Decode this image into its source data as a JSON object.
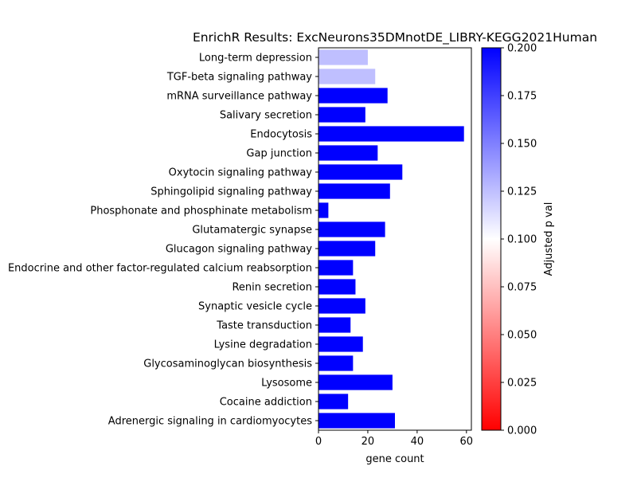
{
  "chart_data": {
    "type": "bar",
    "orientation": "horizontal",
    "title": "EnrichR Results: ExcNeurons35DMnotDE_LIBRY-KEGG2021Human",
    "xlabel": "gene count",
    "ylabel": "",
    "xlim": [
      0,
      62
    ],
    "x_ticks": [
      0,
      20,
      40,
      60
    ],
    "categories": [
      "Long-term depression",
      "TGF-beta signaling pathway",
      "mRNA surveillance pathway",
      "Salivary secretion",
      "Endocytosis",
      "Gap junction",
      "Oxytocin signaling pathway",
      "Sphingolipid signaling pathway",
      "Phosphonate and phosphinate metabolism",
      "Glutamatergic synapse",
      "Glucagon signaling pathway",
      "Endocrine and other factor-regulated calcium reabsorption",
      "Renin secretion",
      "Synaptic vesicle cycle",
      "Taste transduction",
      "Lysine degradation",
      "Glycosaminoglycan biosynthesis",
      "Lysosome",
      "Cocaine addiction",
      "Adrenergic signaling in cardiomyocytes"
    ],
    "values": [
      20,
      23,
      28,
      19,
      59,
      24,
      34,
      29,
      4,
      27,
      23,
      14,
      15,
      19,
      13,
      18,
      14,
      30,
      12,
      31
    ],
    "color_values": [
      0.125,
      0.125,
      0.2,
      0.2,
      0.2,
      0.2,
      0.2,
      0.2,
      0.2,
      0.2,
      0.2,
      0.2,
      0.2,
      0.2,
      0.2,
      0.2,
      0.2,
      0.2,
      0.2,
      0.2
    ],
    "grid": false,
    "colorbar": {
      "label": "Adjusted p val",
      "range": [
        0.0,
        0.2
      ],
      "ticks": [
        "0.000",
        "0.025",
        "0.050",
        "0.075",
        "0.100",
        "0.125",
        "0.150",
        "0.175",
        "0.200"
      ],
      "colors": [
        "#ff0000",
        "#ffffff",
        "#0000ff"
      ]
    }
  }
}
